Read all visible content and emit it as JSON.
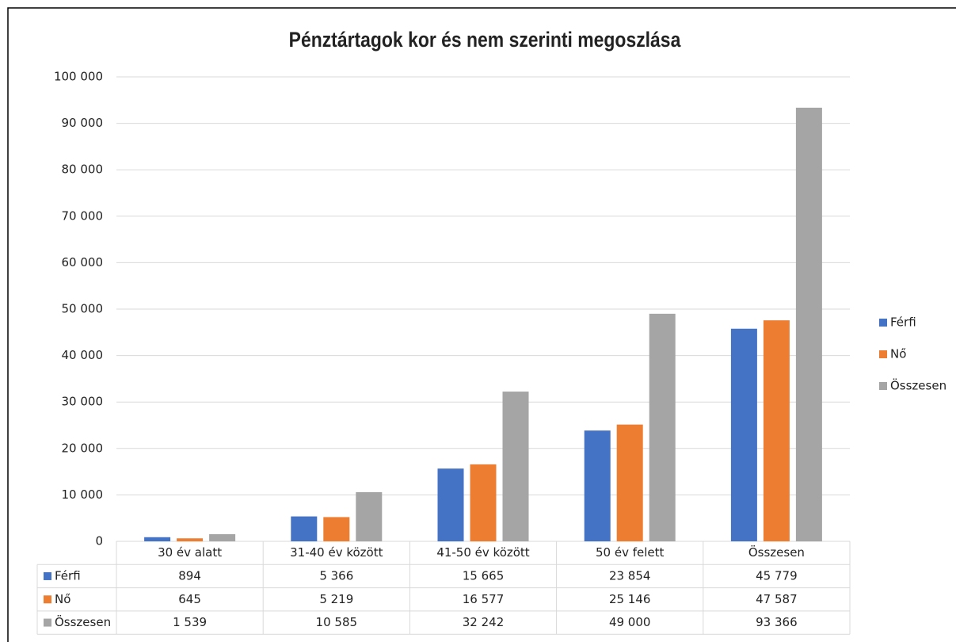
{
  "chart_data": {
    "type": "bar",
    "title": "Pénztártagok kor és nem szerinti megoszlása",
    "categories": [
      "30 év alatt",
      "31-40 év között",
      "41-50 év között",
      "50 év felett",
      "Összesen"
    ],
    "series": [
      {
        "name": "Férfi",
        "color": "#4472c4",
        "values": [
          894,
          5366,
          15665,
          23854,
          45779
        ],
        "value_labels": [
          "894",
          "5 366",
          "15 665",
          "23 854",
          "45 779"
        ]
      },
      {
        "name": "Nő",
        "color": "#ed7d31",
        "values": [
          645,
          5219,
          16577,
          25146,
          47587
        ],
        "value_labels": [
          "645",
          "5 219",
          "16 577",
          "25 146",
          "47 587"
        ]
      },
      {
        "name": "Összesen",
        "color": "#a5a5a5",
        "values": [
          1539,
          10585,
          32242,
          49000,
          93366
        ],
        "value_labels": [
          "1 539",
          "10 585",
          "32 242",
          "49 000",
          "93 366"
        ]
      }
    ],
    "ylim": [
      0,
      100000
    ],
    "yticks": [
      0,
      {
        "value": 10000,
        "label": "10 000"
      },
      {
        "value": 20000,
        "label": "20 000"
      },
      {
        "value": 30000,
        "label": "30 000"
      },
      {
        "value": 40000,
        "label": "40 000"
      },
      {
        "value": 50000,
        "label": "50 000"
      },
      {
        "value": 60000,
        "label": "60 000"
      },
      {
        "value": 70000,
        "label": "70 000"
      },
      {
        "value": 80000,
        "label": "80 000"
      },
      {
        "value": 90000,
        "label": "90 000"
      },
      {
        "value": 100000,
        "label": "100 000"
      }
    ],
    "grid": true,
    "legend": "right"
  }
}
